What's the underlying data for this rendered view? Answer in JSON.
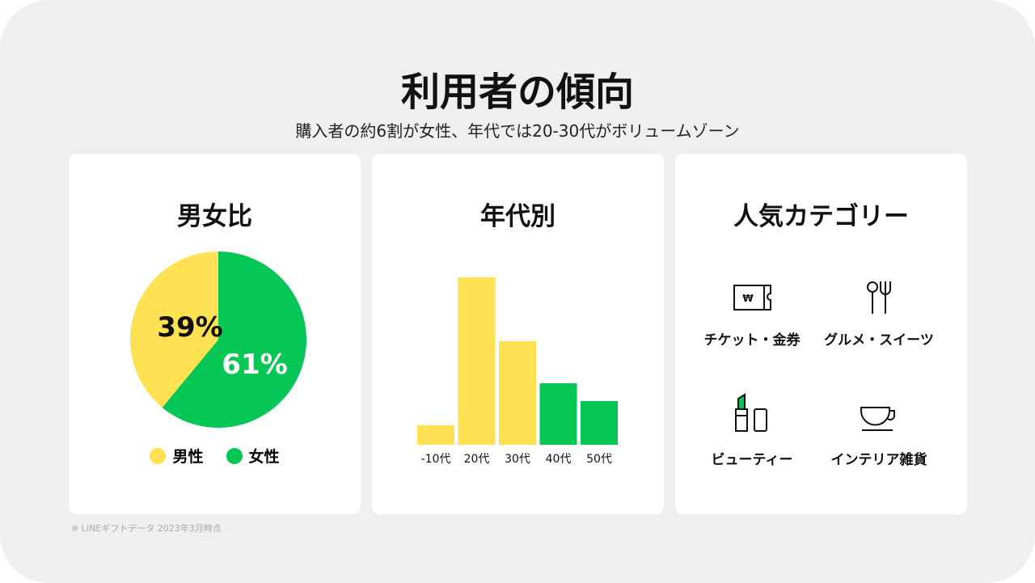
{
  "title": "利用者の傾向",
  "subtitle": "購入者の約6割が女性、年代では20-30代がボリュームゾーン",
  "colors": {
    "yellow": "#FFE153",
    "green": "#06C755"
  },
  "footnote": "※ LINEギフトデータ 2023年3月時点",
  "chart_data": [
    {
      "type": "pie",
      "title": "男女比",
      "labels": [
        "男性",
        "女性"
      ],
      "values": [
        39,
        61
      ],
      "value_labels": [
        "39%",
        "61%"
      ],
      "colors": [
        "#FFE153",
        "#06C755"
      ],
      "legend_placement": "bottom"
    },
    {
      "type": "bar",
      "title": "年代別",
      "categories": [
        "-10代",
        "20代",
        "30代",
        "40代",
        "50代"
      ],
      "values": [
        24,
        207,
        128,
        76,
        54
      ],
      "colors": [
        "#FFE153",
        "#FFE153",
        "#FFE153",
        "#06C755",
        "#06C755"
      ],
      "ylim": [
        0,
        207
      ],
      "grid": false
    }
  ],
  "categories": {
    "title": "人気カテゴリー",
    "items": [
      {
        "label": "チケット・金券",
        "icon": "ticket-icon"
      },
      {
        "label": "グルメ・スイーツ",
        "icon": "cutlery-icon"
      },
      {
        "label": "ビューティー",
        "icon": "lipstick-icon"
      },
      {
        "label": "インテリア雑貨",
        "icon": "cup-icon"
      }
    ]
  }
}
